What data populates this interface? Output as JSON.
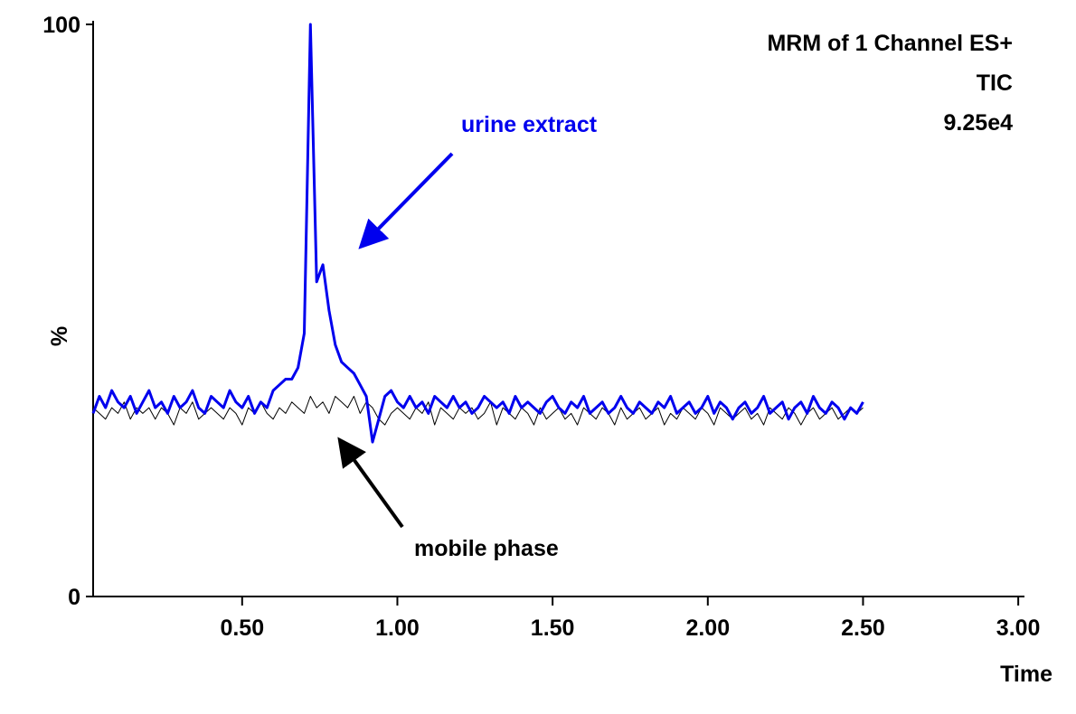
{
  "chart_data": {
    "type": "line",
    "title_lines": [
      "MRM of 1 Channel ES+",
      "TIC",
      "9.25e4"
    ],
    "x_label": "Time",
    "y_label": "%",
    "xlim": [
      0.02,
      3.02
    ],
    "ylim": [
      0,
      100
    ],
    "xticks": [
      {
        "value": 0.5,
        "label": "0.50"
      },
      {
        "value": 1.0,
        "label": "1.00"
      },
      {
        "value": 1.5,
        "label": "1.50"
      },
      {
        "value": 2.0,
        "label": "2.00"
      },
      {
        "value": 2.5,
        "label": "2.50"
      },
      {
        "value": 3.0,
        "label": "3.00"
      }
    ],
    "yticks": [
      0,
      100
    ],
    "x": [
      0.02,
      0.04,
      0.06,
      0.08,
      0.1,
      0.12,
      0.14,
      0.16,
      0.18,
      0.2,
      0.22,
      0.24,
      0.26,
      0.28,
      0.3,
      0.32,
      0.34,
      0.36,
      0.38,
      0.4,
      0.42,
      0.44,
      0.46,
      0.48,
      0.5,
      0.52,
      0.54,
      0.56,
      0.58,
      0.6,
      0.62,
      0.64,
      0.66,
      0.68,
      0.7,
      0.72,
      0.74,
      0.76,
      0.78,
      0.8,
      0.82,
      0.84,
      0.86,
      0.88,
      0.9,
      0.92,
      0.94,
      0.96,
      0.98,
      1.0,
      1.02,
      1.04,
      1.06,
      1.08,
      1.1,
      1.12,
      1.14,
      1.16,
      1.18,
      1.2,
      1.22,
      1.24,
      1.26,
      1.28,
      1.3,
      1.32,
      1.34,
      1.36,
      1.38,
      1.4,
      1.42,
      1.44,
      1.46,
      1.48,
      1.5,
      1.52,
      1.54,
      1.56,
      1.58,
      1.6,
      1.62,
      1.64,
      1.66,
      1.68,
      1.7,
      1.72,
      1.74,
      1.76,
      1.78,
      1.8,
      1.82,
      1.84,
      1.86,
      1.88,
      1.9,
      1.92,
      1.94,
      1.96,
      1.98,
      2.0,
      2.02,
      2.04,
      2.06,
      2.08,
      2.1,
      2.12,
      2.14,
      2.16,
      2.18,
      2.2,
      2.22,
      2.24,
      2.26,
      2.28,
      2.3,
      2.32,
      2.34,
      2.36,
      2.38,
      2.4,
      2.42,
      2.44,
      2.46,
      2.48,
      2.5
    ],
    "series": [
      {
        "name": "mobile phase",
        "color": "#000000",
        "width": 1,
        "values": [
          33,
          32,
          31,
          33,
          32,
          34,
          31,
          33,
          32,
          33,
          31,
          33,
          32,
          30,
          33,
          32,
          34,
          31,
          32,
          33,
          32,
          31,
          33,
          32,
          30,
          33,
          32,
          34,
          32,
          31,
          33,
          32,
          34,
          33,
          32,
          35,
          33,
          34,
          32,
          35,
          34,
          33,
          35,
          32,
          34,
          33,
          31,
          30,
          32,
          33,
          32,
          31,
          33,
          32,
          34,
          30,
          33,
          32,
          31,
          33,
          32,
          33,
          31,
          32,
          34,
          30,
          33,
          32,
          31,
          33,
          32,
          30,
          33,
          31,
          32,
          33,
          31,
          32,
          30,
          33,
          32,
          31,
          33,
          32,
          30,
          33,
          31,
          32,
          33,
          31,
          32,
          33,
          30,
          32,
          31,
          33,
          32,
          31,
          33,
          32,
          30,
          33,
          32,
          31,
          32,
          33,
          31,
          32,
          30,
          33,
          32,
          31,
          33,
          32,
          30,
          32,
          33,
          31,
          32,
          33,
          31,
          32,
          33,
          32,
          33
        ]
      },
      {
        "name": "urine extract",
        "color": "#0000ee",
        "width": 3,
        "values": [
          32,
          35,
          33,
          36,
          34,
          33,
          35,
          32,
          34,
          36,
          33,
          34,
          32,
          35,
          33,
          34,
          36,
          33,
          32,
          35,
          34,
          33,
          36,
          34,
          33,
          35,
          32,
          34,
          33,
          36,
          37,
          38,
          38,
          40,
          46,
          100,
          55,
          58,
          50,
          44,
          41,
          40,
          39,
          37,
          35,
          27,
          31,
          35,
          36,
          34,
          33,
          35,
          33,
          34,
          32,
          35,
          34,
          33,
          35,
          33,
          34,
          32,
          33,
          35,
          34,
          33,
          34,
          32,
          35,
          33,
          34,
          33,
          32,
          34,
          35,
          33,
          32,
          34,
          33,
          35,
          32,
          33,
          34,
          32,
          33,
          35,
          33,
          32,
          34,
          33,
          32,
          34,
          33,
          35,
          32,
          33,
          34,
          32,
          33,
          35,
          32,
          34,
          33,
          31,
          33,
          34,
          32,
          33,
          35,
          32,
          33,
          34,
          31,
          33,
          34,
          32,
          35,
          33,
          32,
          34,
          33,
          31,
          33,
          32,
          34
        ]
      }
    ]
  }
}
